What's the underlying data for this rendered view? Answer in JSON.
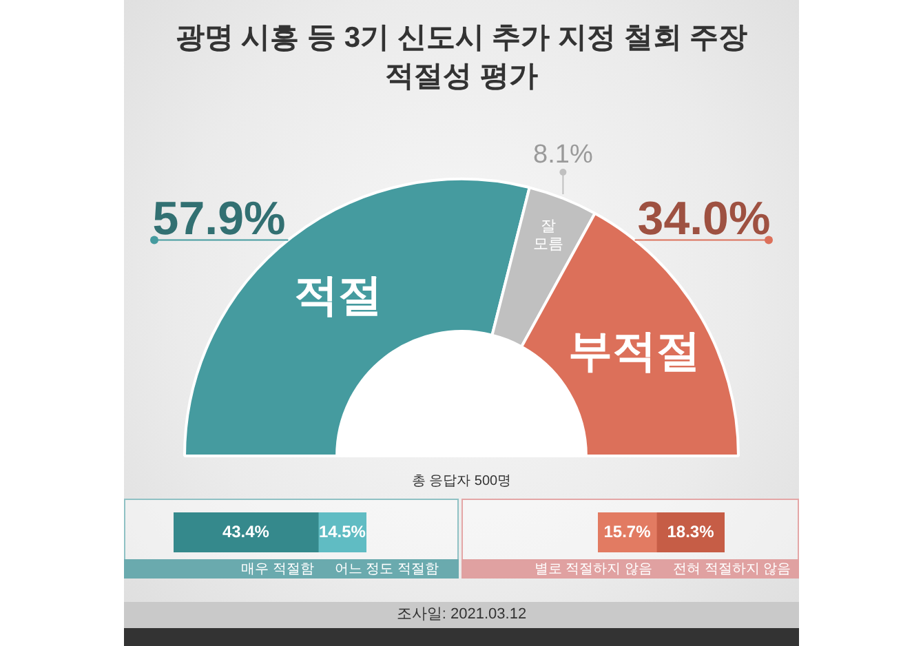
{
  "chart_data": [
    {
      "type": "donut",
      "title": "광명 시흥 등 3기 신도시 추가 지정 철회 주장 적절성 평가",
      "categories": [
        "적절",
        "잘 모름",
        "부적절"
      ],
      "values": [
        57.9,
        8.1,
        34.0
      ],
      "colors": [
        "#459b9f",
        "#c0c0c0",
        "#dc705a"
      ],
      "value_labels": [
        "57.9%",
        "8.1%",
        "34.0%"
      ],
      "annotations": [
        "총 응답자 500명",
        "조사일: 2021.03.12"
      ]
    },
    {
      "type": "bar",
      "orientation": "horizontal",
      "stacked": true,
      "tick_labels": false,
      "categories": [
        null
      ],
      "series": [
        {
          "name": "매우 적절함",
          "color": "#35898c",
          "values": [
            43.4
          ],
          "value_labels": [
            "43.4%"
          ]
        },
        {
          "name": "어느 정도 적절함",
          "color": "#60bcc3",
          "values": [
            14.5
          ],
          "value_labels": [
            "14.5%"
          ]
        }
      ]
    },
    {
      "type": "bar",
      "orientation": "horizontal",
      "stacked": true,
      "tick_labels": false,
      "categories": [
        null
      ],
      "series": [
        {
          "name": "별로 적절하지 않음",
          "color": "#e27b62",
          "values": [
            15.7
          ],
          "value_labels": [
            "15.7%"
          ]
        },
        {
          "name": "전혀 적절하지 않음",
          "color": "#c65d46",
          "values": [
            18.3
          ],
          "value_labels": [
            "18.3%"
          ]
        }
      ]
    }
  ]
}
